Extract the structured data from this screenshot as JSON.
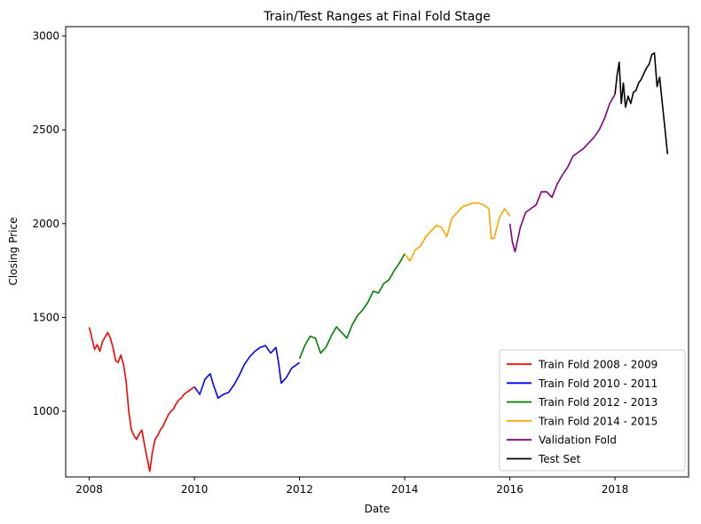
{
  "chart_data": {
    "type": "line",
    "title": "Train/Test Ranges at Final Fold Stage",
    "xlabel": "Date",
    "ylabel": "Closing Price",
    "xlim": [
      2007.55,
      2019.4
    ],
    "ylim": [
      650,
      3050
    ],
    "xticks": [
      2008,
      2010,
      2012,
      2014,
      2016,
      2018
    ],
    "xtick_labels": [
      "2008",
      "2010",
      "2012",
      "2014",
      "2016",
      "2018"
    ],
    "yticks": [
      1000,
      1500,
      2000,
      2500,
      3000
    ],
    "ytick_labels": [
      "1000",
      "1500",
      "2000",
      "2500",
      "3000"
    ],
    "grid": false,
    "legend_position": "bottom-right",
    "series": [
      {
        "name": "Train Fold 2008 - 2009",
        "color": "#ff0000",
        "x": [
          2008.0,
          2008.05,
          2008.1,
          2008.15,
          2008.2,
          2008.25,
          2008.3,
          2008.35,
          2008.4,
          2008.45,
          2008.5,
          2008.55,
          2008.6,
          2008.65,
          2008.7,
          2008.75,
          2008.8,
          2008.85,
          2008.9,
          2008.95,
          2009.0,
          2009.05,
          2009.1,
          2009.15,
          2009.2,
          2009.25,
          2009.3,
          2009.35,
          2009.4,
          2009.45,
          2009.5,
          2009.55,
          2009.6,
          2009.65,
          2009.7,
          2009.75,
          2009.8,
          2009.85,
          2009.9,
          2009.95,
          2010.0
        ],
        "y": [
          1447,
          1390,
          1330,
          1355,
          1320,
          1370,
          1395,
          1420,
          1390,
          1340,
          1270,
          1260,
          1300,
          1250,
          1160,
          1000,
          900,
          870,
          850,
          880,
          900,
          820,
          750,
          680,
          780,
          850,
          870,
          900,
          920,
          950,
          980,
          1000,
          1010,
          1040,
          1060,
          1070,
          1090,
          1100,
          1110,
          1120,
          1130
        ]
      },
      {
        "name": "Train Fold 2010 - 2011",
        "color": "#0000ff",
        "x": [
          2010.0,
          2010.1,
          2010.2,
          2010.3,
          2010.35,
          2010.45,
          2010.55,
          2010.65,
          2010.75,
          2010.85,
          2010.95,
          2011.05,
          2011.15,
          2011.25,
          2011.35,
          2011.45,
          2011.55,
          2011.6,
          2011.65,
          2011.75,
          2011.85,
          2011.95,
          2012.0
        ],
        "y": [
          1130,
          1090,
          1170,
          1200,
          1150,
          1070,
          1090,
          1100,
          1140,
          1190,
          1250,
          1290,
          1320,
          1340,
          1350,
          1310,
          1340,
          1260,
          1150,
          1180,
          1230,
          1250,
          1260
        ]
      },
      {
        "name": "Train Fold 2012 - 2013",
        "color": "#008000",
        "x": [
          2012.0,
          2012.1,
          2012.2,
          2012.3,
          2012.4,
          2012.5,
          2012.6,
          2012.7,
          2012.8,
          2012.9,
          2013.0,
          2013.1,
          2013.2,
          2013.3,
          2013.4,
          2013.5,
          2013.6,
          2013.7,
          2013.8,
          2013.9,
          2014.0
        ],
        "y": [
          1280,
          1350,
          1400,
          1390,
          1310,
          1340,
          1400,
          1450,
          1420,
          1390,
          1460,
          1510,
          1540,
          1580,
          1640,
          1630,
          1680,
          1700,
          1750,
          1790,
          1840
        ]
      },
      {
        "name": "Train Fold 2014 - 2015",
        "color": "#ffa500",
        "x": [
          2014.0,
          2014.1,
          2014.2,
          2014.3,
          2014.4,
          2014.5,
          2014.6,
          2014.7,
          2014.8,
          2014.9,
          2015.0,
          2015.1,
          2015.2,
          2015.3,
          2015.4,
          2015.5,
          2015.6,
          2015.65,
          2015.7,
          2015.8,
          2015.9,
          2016.0
        ],
        "y": [
          1840,
          1800,
          1860,
          1880,
          1930,
          1960,
          1990,
          1980,
          1930,
          2030,
          2060,
          2090,
          2100,
          2110,
          2110,
          2100,
          2080,
          1920,
          1920,
          2030,
          2080,
          2040
        ]
      },
      {
        "name": "Validation Fold",
        "color": "#800080",
        "x": [
          2016.0,
          2016.05,
          2016.1,
          2016.2,
          2016.3,
          2016.4,
          2016.5,
          2016.6,
          2016.7,
          2016.8,
          2016.9,
          2017.0,
          2017.1,
          2017.2,
          2017.3,
          2017.4,
          2017.5,
          2017.6,
          2017.7,
          2017.8,
          2017.9,
          2018.0
        ],
        "y": [
          2000,
          1900,
          1850,
          1980,
          2060,
          2080,
          2100,
          2170,
          2170,
          2140,
          2210,
          2260,
          2300,
          2360,
          2380,
          2400,
          2430,
          2460,
          2500,
          2560,
          2640,
          2690
        ]
      },
      {
        "name": "Test Set",
        "color": "#000000",
        "x": [
          2018.0,
          2018.04,
          2018.08,
          2018.12,
          2018.16,
          2018.2,
          2018.25,
          2018.3,
          2018.35,
          2018.4,
          2018.45,
          2018.5,
          2018.55,
          2018.6,
          2018.65,
          2018.7,
          2018.75,
          2018.8,
          2018.85,
          2018.9,
          2018.95,
          2019.0
        ],
        "y": [
          2690,
          2790,
          2860,
          2640,
          2750,
          2620,
          2680,
          2640,
          2700,
          2710,
          2750,
          2770,
          2800,
          2830,
          2850,
          2900,
          2910,
          2730,
          2780,
          2640,
          2510,
          2370
        ]
      }
    ]
  }
}
